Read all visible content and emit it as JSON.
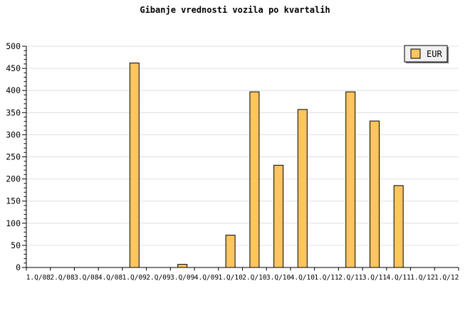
{
  "title": "Gibanje vrednosti vozila po kvartalih",
  "legend": {
    "label": "EUR"
  },
  "colors": {
    "background": "#FFFFFF",
    "bar_fill": "#FDC55E",
    "bar_border": "#000000",
    "gridline": "#E0E0E0",
    "axis": "#000000",
    "text": "#000000",
    "legend_bg": "#F0F0F0",
    "legend_border": "#000000",
    "legend_shadow": "#777777"
  },
  "chart_data": {
    "type": "bar",
    "title": "Gibanje vrednosti vozila po kvartalih",
    "xlabel": "",
    "ylabel": "",
    "categories": [
      "1.Q/08",
      "2.Q/08",
      "3.Q/08",
      "4.Q/08",
      "1.Q/09",
      "2.Q/09",
      "3.Q/09",
      "4.Q/09",
      "1.Q/10",
      "2.Q/10",
      "3.Q/10",
      "4.Q/10",
      "1.Q/11",
      "2.Q/11",
      "3.Q/11",
      "4.Q/11",
      "1.Q/12",
      "1.Q/12"
    ],
    "series": [
      {
        "name": "EUR",
        "values": [
          0,
          0,
          0,
          0,
          462,
          0,
          7,
          0,
          73,
          397,
          231,
          357,
          0,
          397,
          331,
          185,
          0,
          0
        ]
      }
    ],
    "ylim": [
      0,
      500
    ],
    "ytick_step": 50,
    "yminor_tick_step": 10,
    "grid": true,
    "legend_position": "top-right"
  }
}
